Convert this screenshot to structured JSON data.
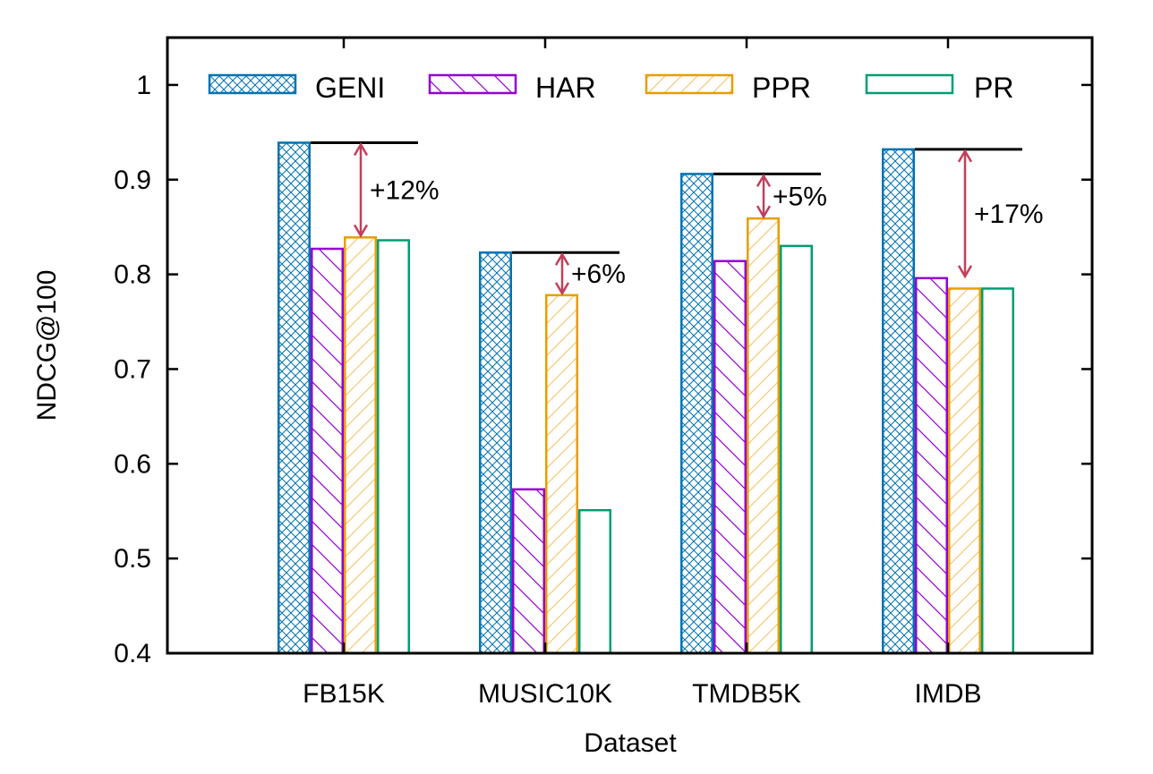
{
  "chart_data": {
    "type": "bar",
    "xlabel": "Dataset",
    "ylabel": "NDCG@100",
    "ylim": [
      0.4,
      1.05
    ],
    "yticks": [
      0.4,
      0.5,
      0.6,
      0.7,
      0.8,
      0.9,
      1
    ],
    "ytick_labels": [
      "0.4",
      "0.5",
      "0.6",
      "0.7",
      "0.8",
      "0.9",
      "1"
    ],
    "categories": [
      "FB15K",
      "MUSIC10K",
      "TMDB5K",
      "IMDB"
    ],
    "series": [
      {
        "name": "GENI",
        "values": [
          0.939,
          0.823,
          0.906,
          0.932
        ],
        "color": "#0072b2",
        "pattern": "crosshatch"
      },
      {
        "name": "HAR",
        "values": [
          0.827,
          0.573,
          0.814,
          0.796
        ],
        "color": "#9400d3",
        "pattern": "backslash"
      },
      {
        "name": "PPR",
        "values": [
          0.839,
          0.778,
          0.859,
          0.785
        ],
        "color": "#e69f00",
        "pattern": "slash"
      },
      {
        "name": "PR",
        "values": [
          0.836,
          0.551,
          0.83,
          0.785
        ],
        "color": "#009e73",
        "pattern": "none"
      }
    ],
    "annotations": [
      {
        "category": "FB15K",
        "text": "+12%",
        "from": 0.939,
        "to": 0.839
      },
      {
        "category": "MUSIC10K",
        "text": "+6%",
        "from": 0.823,
        "to": 0.778
      },
      {
        "category": "TMDB5K",
        "text": "+5%",
        "from": 0.906,
        "to": 0.859
      },
      {
        "category": "IMDB",
        "text": "+17%",
        "from": 0.932,
        "to": 0.796
      }
    ],
    "annotation_color": "#c0405a",
    "legend_position": "top",
    "grid": false
  }
}
